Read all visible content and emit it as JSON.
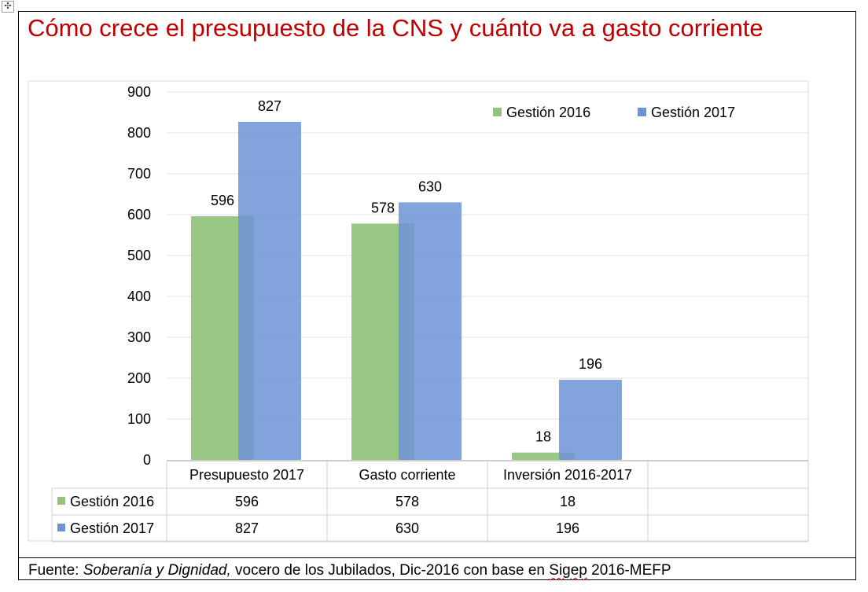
{
  "title": "Cómo crece el presupuesto de la CNS y cuánto va a gasto corriente",
  "source": {
    "prefix": "Fuente: ",
    "italic": "Soberanía y Dignidad,",
    "middle": " vocero de los Jubilados, Dic-2016 con base en ",
    "underlined": "Sigep",
    "suffix": " 2016-MEFP"
  },
  "colors": {
    "title": "#c00000",
    "series_2016": "#93c47d",
    "series_2017": "#6d93d7"
  },
  "chart_data": {
    "type": "bar",
    "categories": [
      "Presupuesto 2017",
      "Gasto corriente",
      "Inversión 2016-2017"
    ],
    "series": [
      {
        "name": "Gestión 2016",
        "values": [
          596,
          578,
          18
        ]
      },
      {
        "name": "Gestión 2017",
        "values": [
          827,
          630,
          196
        ]
      }
    ],
    "ylim": [
      0,
      900
    ],
    "yticks": [
      0,
      100,
      200,
      300,
      400,
      500,
      600,
      700,
      800,
      900
    ],
    "legend": "top-right",
    "data_table": true,
    "grid": true
  }
}
